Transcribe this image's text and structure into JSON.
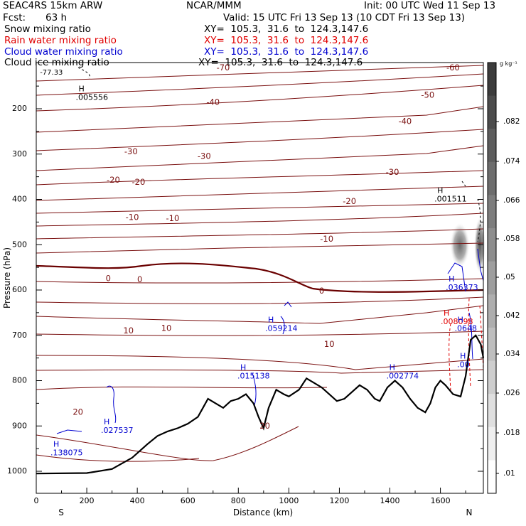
{
  "header": {
    "model": "SEAC4RS 15km ARW",
    "org": "NCAR/MMM",
    "init": "Init: 00 UTC Wed 11 Sep 13",
    "fcst_label": "Fcst:",
    "fcst_value": "63 h",
    "valid": "Valid: 15 UTC Fri 13 Sep 13 (10 CDT Fri 13 Sep 13)",
    "fields": [
      {
        "name": "Snow mixing ratio",
        "xy": "XY=  105.3,  31.6  to  124.3,147.6",
        "color": "#000000"
      },
      {
        "name": "Rain water mixing ratio",
        "xy": "XY=  105.3,  31.6  to  124.3,147.6",
        "color": "#e00000"
      },
      {
        "name": "Cloud water mixing ratio",
        "xy": "XY=  105.3,  31.6  to  124.3,147.6",
        "color": "#0000d0"
      },
      {
        "name": "Cloud ice mixing ratio",
        "xy": "XY=  105.3,  31.6  to  124.3,147.6",
        "color": "#000000"
      }
    ]
  },
  "chart_data": {
    "type": "cross-section",
    "xlabel": "Distance (km)",
    "ylabel": "Pressure (hPa)",
    "xlim": [
      0,
      1770
    ],
    "ylim": [
      1050,
      100
    ],
    "x_ticks": [
      0,
      200,
      400,
      600,
      800,
      1000,
      1200,
      1400,
      1600
    ],
    "y_ticks": [
      200,
      300,
      400,
      500,
      600,
      700,
      800,
      900,
      1000
    ],
    "end_labels": {
      "left": "S",
      "right": "N"
    },
    "colorbar": {
      "unit": "g kg⁻¹",
      "ticks": [
        ".01",
        ".018",
        ".026",
        ".034",
        ".042",
        ".05",
        ".058",
        ".066",
        ".074",
        ".082"
      ]
    },
    "temperature_contours": [
      {
        "label": "-70",
        "x": 740,
        "p": 110
      },
      {
        "label": "-60",
        "x": 1650,
        "p": 110
      },
      {
        "label": "-50",
        "x": 1550,
        "p": 170
      },
      {
        "label": "-40",
        "x": 700,
        "p": 186
      },
      {
        "label": "-40",
        "x": 1460,
        "p": 228
      },
      {
        "label": "-30",
        "x": 375,
        "p": 295
      },
      {
        "label": "-30",
        "x": 665,
        "p": 305
      },
      {
        "label": "-30",
        "x": 1410,
        "p": 340
      },
      {
        "label": "-20",
        "x": 305,
        "p": 358
      },
      {
        "label": "-20",
        "x": 405,
        "p": 362
      },
      {
        "label": "-20",
        "x": 1240,
        "p": 405
      },
      {
        "label": "-10",
        "x": 380,
        "p": 440
      },
      {
        "label": "-10",
        "x": 540,
        "p": 442
      },
      {
        "label": "-10",
        "x": 1150,
        "p": 488
      },
      {
        "label": "0",
        "x": 285,
        "p": 575
      },
      {
        "label": "0",
        "x": 410,
        "p": 577
      },
      {
        "label": "0",
        "x": 1130,
        "p": 602
      },
      {
        "label": "10",
        "x": 365,
        "p": 690
      },
      {
        "label": "10",
        "x": 515,
        "p": 685
      },
      {
        "label": "10",
        "x": 1160,
        "p": 720
      },
      {
        "label": "20",
        "x": 165,
        "p": 870
      },
      {
        "label": "20",
        "x": 905,
        "p": 900
      },
      {
        "label": "-77.33",
        "x": 60,
        "p": 120
      }
    ],
    "maxima": [
      {
        "label": ".005556",
        "x": 190,
        "p": 180
      },
      {
        "label": ".001511",
        "x": 1610,
        "p": 405
      },
      {
        "label": ".036373",
        "x": 1655,
        "p": 600
      },
      {
        "label": ".059214",
        "x": 940,
        "p": 690
      },
      {
        "label": ".008098",
        "x": 1635,
        "p": 675
      },
      {
        "label": ".0648",
        "x": 1690,
        "p": 690
      },
      {
        "label": ".00",
        "x": 1700,
        "p": 770
      },
      {
        "label": ".015138",
        "x": 830,
        "p": 795
      },
      {
        "label": ".002774",
        "x": 1420,
        "p": 795
      },
      {
        "label": ".027537",
        "x": 290,
        "p": 915
      },
      {
        "label": ".138075",
        "x": 90,
        "p": 965
      }
    ],
    "terrain": [
      [
        0,
        1005
      ],
      [
        200,
        1004
      ],
      [
        300,
        995
      ],
      [
        380,
        970
      ],
      [
        440,
        940
      ],
      [
        480,
        922
      ],
      [
        520,
        912
      ],
      [
        560,
        905
      ],
      [
        600,
        895
      ],
      [
        640,
        880
      ],
      [
        660,
        860
      ],
      [
        680,
        840
      ],
      [
        710,
        850
      ],
      [
        740,
        860
      ],
      [
        770,
        845
      ],
      [
        800,
        840
      ],
      [
        830,
        830
      ],
      [
        860,
        850
      ],
      [
        880,
        880
      ],
      [
        900,
        905
      ],
      [
        920,
        860
      ],
      [
        950,
        820
      ],
      [
        980,
        830
      ],
      [
        1000,
        835
      ],
      [
        1040,
        820
      ],
      [
        1070,
        795
      ],
      [
        1100,
        805
      ],
      [
        1130,
        815
      ],
      [
        1160,
        830
      ],
      [
        1190,
        845
      ],
      [
        1220,
        840
      ],
      [
        1250,
        825
      ],
      [
        1280,
        810
      ],
      [
        1310,
        820
      ],
      [
        1340,
        840
      ],
      [
        1360,
        845
      ],
      [
        1390,
        815
      ],
      [
        1420,
        800
      ],
      [
        1450,
        815
      ],
      [
        1480,
        840
      ],
      [
        1510,
        860
      ],
      [
        1540,
        870
      ],
      [
        1560,
        850
      ],
      [
        1580,
        815
      ],
      [
        1600,
        800
      ],
      [
        1620,
        810
      ],
      [
        1650,
        830
      ],
      [
        1680,
        835
      ],
      [
        1700,
        790
      ],
      [
        1720,
        710
      ],
      [
        1740,
        700
      ],
      [
        1760,
        720
      ],
      [
        1770,
        750
      ]
    ]
  }
}
